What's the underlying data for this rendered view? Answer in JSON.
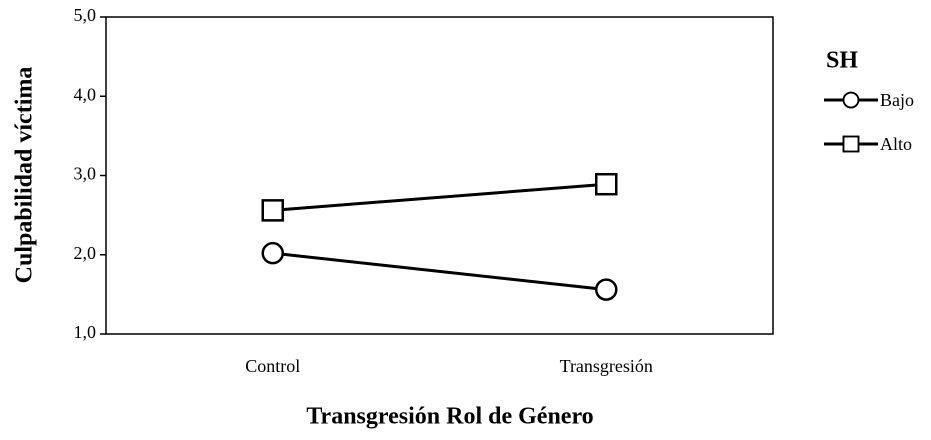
{
  "chart_data": {
    "type": "line",
    "x_label": "Transgresión Rol de Género",
    "y_label": "Culpabilidad víctima",
    "legend_title": "SH",
    "categories": [
      "Control",
      "Transgresión"
    ],
    "series": [
      {
        "name": "Bajo",
        "color": "#000000",
        "marker": "circle",
        "values": [
          2.02,
          1.56
        ]
      },
      {
        "name": "Alto",
        "color": "#000000",
        "marker": "square",
        "values": [
          2.56,
          2.89
        ]
      }
    ],
    "ylim": [
      1,
      5
    ],
    "yticks": [
      {
        "value": 1,
        "label": "1,0"
      },
      {
        "value": 2,
        "label": "2,0"
      },
      {
        "value": 3,
        "label": "3,0"
      },
      {
        "value": 4,
        "label": "4,0"
      },
      {
        "value": 5,
        "label": "5,0"
      }
    ],
    "legend": "right"
  }
}
